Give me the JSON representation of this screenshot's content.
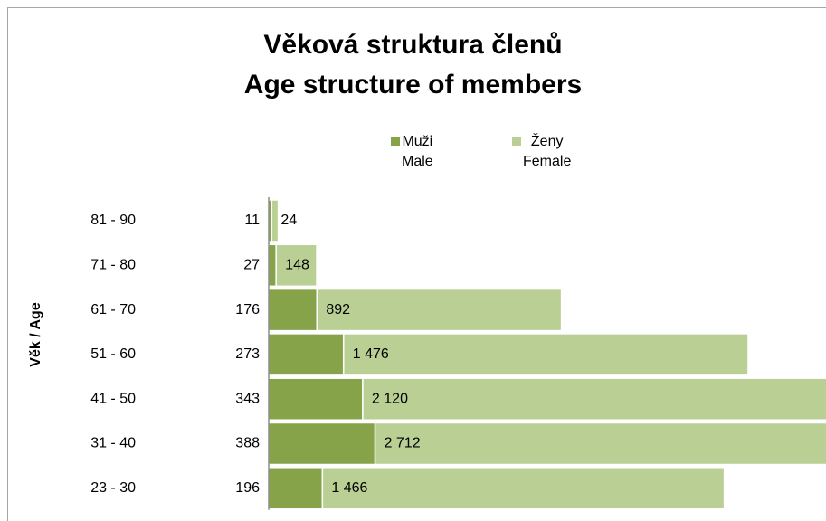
{
  "chart_data": {
    "type": "stacked-barh",
    "title": "Věková struktura členů\nAge structure of members",
    "y_axis_label": "Věk / Age",
    "categories": [
      "81 - 90",
      "71 - 80",
      "61 - 70",
      "51 - 60",
      "41 - 50",
      "31 - 40",
      "23 - 30"
    ],
    "legend": "top",
    "series": [
      {
        "name": "Muži\nMale",
        "color": "#86a34a",
        "values": [
          11,
          27,
          176,
          273,
          343,
          388,
          196
        ]
      },
      {
        "name": "Ženy\nFemale",
        "color": "#b9cf94",
        "values": [
          24,
          148,
          892,
          1476,
          2120,
          2712,
          1466
        ],
        "value_labels": [
          "24",
          "148",
          "892",
          "1 476",
          "2 120",
          "2 712",
          "1 466"
        ]
      }
    ]
  }
}
